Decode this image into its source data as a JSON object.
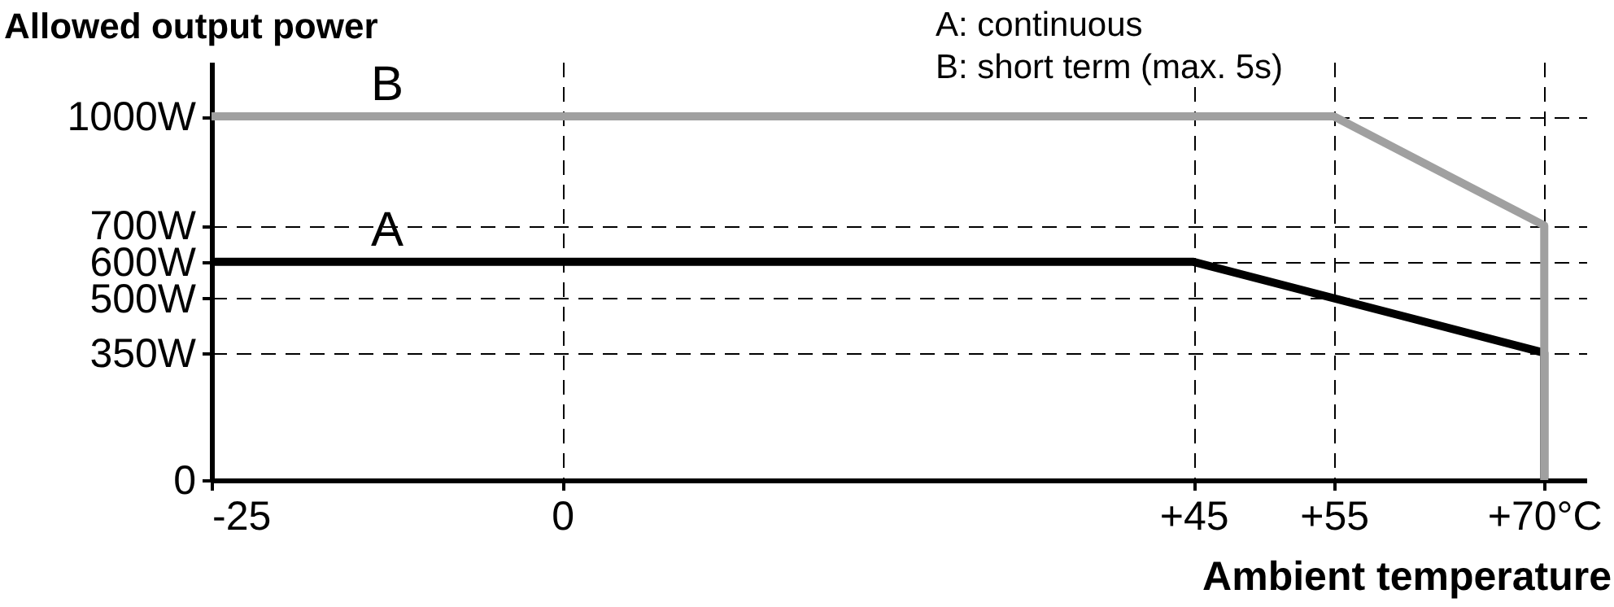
{
  "chart_data": {
    "type": "line",
    "xlabel": "Ambient temperature",
    "ylabel": "Allowed output power",
    "annotations": [
      "A: continuous",
      "B: short term (max. 5s)"
    ],
    "xlim": [
      -25,
      73
    ],
    "ylim": [
      0,
      1150
    ],
    "xticks": [
      -25,
      0,
      {
        "value": 45,
        "label": "+45"
      },
      {
        "value": 55,
        "label": "+55"
      },
      {
        "value": 70,
        "label": "+70°C"
      }
    ],
    "yticks": [
      0,
      {
        "value": 350,
        "label": "350W"
      },
      {
        "value": 500,
        "label": "500W"
      },
      {
        "value": 600,
        "label": "600W"
      },
      {
        "value": 700,
        "label": "700W"
      },
      {
        "value": 1000,
        "label": "1000W"
      }
    ],
    "grid": true,
    "series": [
      {
        "name": "A",
        "color": "#000000",
        "x": [
          -25,
          45,
          70,
          70
        ],
        "values": [
          600,
          600,
          350,
          0
        ]
      },
      {
        "name": "B",
        "color": "#a0a0a0",
        "x": [
          -25,
          55,
          70,
          70
        ],
        "values": [
          1000,
          1000,
          700,
          0
        ]
      }
    ]
  }
}
